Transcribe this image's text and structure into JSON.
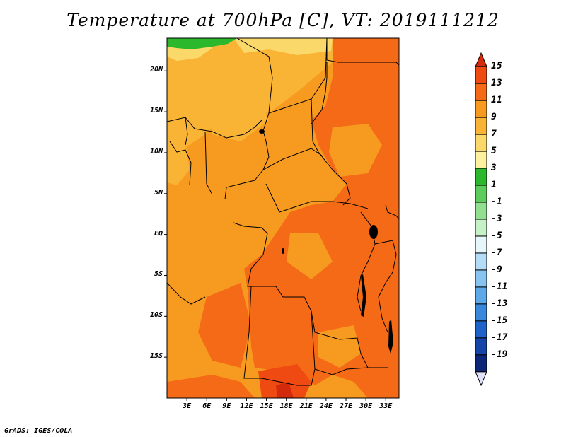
{
  "title": "Temperature at 700hPa [C], VT: 2019111212",
  "credit": "GrADS: IGES/COLA",
  "map": {
    "projection": "latlon",
    "lat_range": [
      -20,
      24
    ],
    "lon_range": [
      0,
      35
    ],
    "lat_ticks": [
      {
        "value": 20,
        "label": "20N"
      },
      {
        "value": 15,
        "label": "15N"
      },
      {
        "value": 10,
        "label": "10N"
      },
      {
        "value": 5,
        "label": "5N"
      },
      {
        "value": 0,
        "label": "EQ"
      },
      {
        "value": -5,
        "label": "5S"
      },
      {
        "value": -10,
        "label": "10S"
      },
      {
        "value": -15,
        "label": "15S"
      }
    ],
    "lon_ticks": [
      {
        "value": 3,
        "label": "3E"
      },
      {
        "value": 6,
        "label": "6E"
      },
      {
        "value": 9,
        "label": "9E"
      },
      {
        "value": 12,
        "label": "12E"
      },
      {
        "value": 15,
        "label": "15E"
      },
      {
        "value": 18,
        "label": "18E"
      },
      {
        "value": 21,
        "label": "21E"
      },
      {
        "value": 24,
        "label": "24E"
      },
      {
        "value": 27,
        "label": "27E"
      },
      {
        "value": 30,
        "label": "30E"
      },
      {
        "value": 33,
        "label": "33E"
      }
    ]
  },
  "colorbar": {
    "labels": [
      "15",
      "13",
      "11",
      "9",
      "7",
      "5",
      "3",
      "1",
      "-1",
      "-3",
      "-5",
      "-7",
      "-9",
      "-11",
      "-13",
      "-15",
      "-17",
      "-19"
    ],
    "colors": [
      "#d42a0c",
      "#ee4a12",
      "#f56a17",
      "#f79a20",
      "#f9b436",
      "#fbd86a",
      "#fdf0a0",
      "#2cb82c",
      "#5ccc5c",
      "#90e090",
      "#c6f0c6",
      "#e6f6fa",
      "#b4dcf6",
      "#88c4f0",
      "#5ca8e8",
      "#3a88dc",
      "#1e64c8",
      "#1444a8",
      "#0c2678",
      "#e0e0f8"
    ]
  },
  "temperature_zones": {
    "colors": {
      "c3_5": "#fdf0a0",
      "c5_7": "#fbd86a",
      "c7_9": "#f9b436",
      "c9_11": "#f79a20",
      "c11_13": "#f56a17",
      "c13_15": "#ee4a12",
      "c15p": "#d42a0c",
      "c1_3": "#2cb82c"
    }
  }
}
